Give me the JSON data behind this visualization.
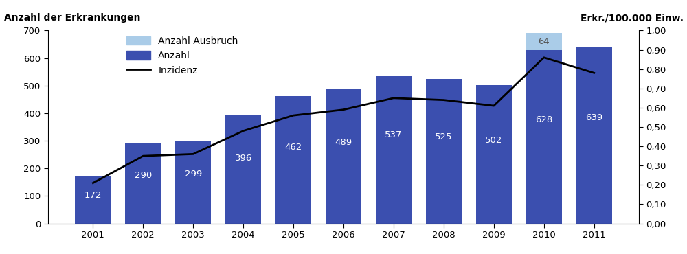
{
  "years": [
    2001,
    2002,
    2003,
    2004,
    2005,
    2006,
    2007,
    2008,
    2009,
    2010,
    2011
  ],
  "anzahl": [
    172,
    290,
    299,
    396,
    462,
    489,
    537,
    525,
    502,
    628,
    639
  ],
  "ausbruch": [
    0,
    0,
    0,
    0,
    0,
    0,
    0,
    0,
    0,
    64,
    0
  ],
  "inzidenz": [
    0.21,
    0.35,
    0.36,
    0.48,
    0.56,
    0.59,
    0.65,
    0.64,
    0.61,
    0.86,
    0.78
  ],
  "bar_color": "#3B4FAF",
  "ausbruch_color": "#AACCE8",
  "line_color": "#000000",
  "left_ylabel": "Anzahl der Erkrankungen",
  "right_ylabel": "Erkr./100.000 Einw.",
  "ylim_left": [
    0,
    700
  ],
  "ylim_right": [
    0.0,
    1.0
  ],
  "yticks_left": [
    0,
    100,
    200,
    300,
    400,
    500,
    600,
    700
  ],
  "yticks_right": [
    0.0,
    0.1,
    0.2,
    0.3,
    0.4,
    0.5,
    0.6,
    0.7,
    0.8,
    0.9,
    1.0
  ],
  "legend_labels": [
    "Anzahl Ausbruch",
    "Anzahl",
    "Inzidenz"
  ],
  "bar_label_color": "#FFFFFF",
  "bar_fontsize": 9.5,
  "axis_label_fontsize": 10,
  "tick_fontsize": 9.5,
  "legend_fontsize": 10,
  "background_color": "#FFFFFF"
}
